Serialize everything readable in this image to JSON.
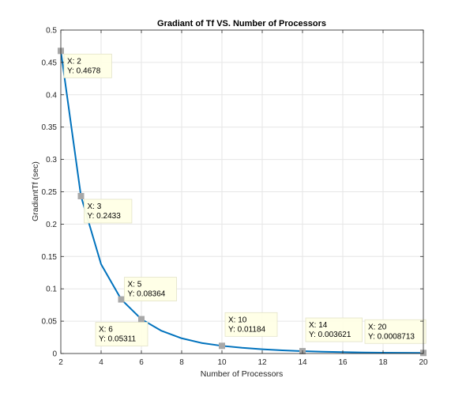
{
  "chart_data": {
    "type": "line",
    "title": "Gradiant of Tf VS. Number of Processors",
    "xlabel": "Number of Processors",
    "ylabel": "GradiantTf (sec)",
    "xlim": [
      2,
      20
    ],
    "ylim": [
      0,
      0.5
    ],
    "x_ticks": [
      2,
      4,
      6,
      8,
      10,
      12,
      14,
      16,
      18,
      20
    ],
    "x_tick_labels": [
      "2",
      "4",
      "6",
      "8",
      "10",
      "12",
      "14",
      "16",
      "18",
      "20"
    ],
    "y_ticks": [
      0,
      0.05,
      0.1,
      0.15,
      0.2,
      0.25,
      0.3,
      0.35,
      0.4,
      0.45,
      0.5
    ],
    "y_tick_labels": [
      "0",
      "0.05",
      "0.1",
      "0.15",
      "0.2",
      "0.25",
      "0.3",
      "0.35",
      "0.4",
      "0.45",
      "0.5"
    ],
    "grid": true,
    "line_color": "#0072BD",
    "marker_color": "#a8a8a8",
    "series": [
      {
        "x": [
          2,
          3,
          4,
          5,
          6,
          7,
          8,
          9,
          10,
          11,
          12,
          13,
          14,
          15,
          16,
          17,
          18,
          19,
          20
        ],
        "y": [
          0.4678,
          0.2433,
          0.138,
          0.08364,
          0.05311,
          0.035,
          0.0235,
          0.0162,
          0.01184,
          0.0088,
          0.0066,
          0.0049,
          0.003621,
          0.0028,
          0.0021,
          0.0016,
          0.0012,
          0.001,
          0.0008713
        ]
      }
    ],
    "datatips": [
      {
        "x_text": "X: 2",
        "y_text": "Y: 0.4678",
        "x": 2,
        "y": 0.4678
      },
      {
        "x_text": "X: 3",
        "y_text": "Y: 0.2433",
        "x": 3,
        "y": 0.2433
      },
      {
        "x_text": "X: 5",
        "y_text": "Y: 0.08364",
        "x": 5,
        "y": 0.08364
      },
      {
        "x_text": "X: 6",
        "y_text": "Y: 0.05311",
        "x": 6,
        "y": 0.05311
      },
      {
        "x_text": "X: 10",
        "y_text": "Y: 0.01184",
        "x": 10,
        "y": 0.01184
      },
      {
        "x_text": "X: 14",
        "y_text": "Y: 0.003621",
        "x": 14,
        "y": 0.003621
      },
      {
        "x_text": "X: 20",
        "y_text": "Y: 0.0008713",
        "x": 20,
        "y": 0.0008713
      }
    ]
  }
}
